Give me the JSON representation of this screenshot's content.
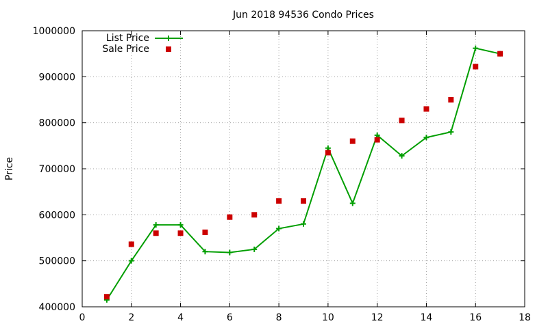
{
  "chart_data": {
    "type": "line",
    "title": "Jun 2018 94536 Condo Prices",
    "xlabel": "",
    "ylabel": "Price",
    "xlim": [
      0,
      18
    ],
    "ylim": [
      400000,
      1000000
    ],
    "xticks": [
      0,
      2,
      4,
      6,
      8,
      10,
      12,
      14,
      16,
      18
    ],
    "yticks": [
      400000,
      500000,
      600000,
      700000,
      800000,
      900000,
      1000000
    ],
    "grid": true,
    "legend_position": "top-left",
    "series": [
      {
        "name": "List Price",
        "style": "line-with-plus-markers",
        "color": "#009e00",
        "x": [
          1,
          2,
          3,
          4,
          5,
          6,
          7,
          8,
          9,
          10,
          11,
          12,
          13,
          14,
          15,
          16,
          17
        ],
        "y": [
          415000,
          500000,
          578000,
          578000,
          520000,
          518000,
          525000,
          570000,
          580000,
          745000,
          625000,
          773000,
          728000,
          768000,
          780000,
          962000,
          950000
        ]
      },
      {
        "name": "Sale Price",
        "style": "square-markers",
        "color": "#cc0000",
        "x": [
          1,
          2,
          3,
          4,
          5,
          6,
          7,
          8,
          9,
          10,
          11,
          12,
          13,
          14,
          15,
          16,
          17
        ],
        "y": [
          422000,
          536000,
          560000,
          560000,
          562000,
          595000,
          600000,
          630000,
          630000,
          735000,
          760000,
          763000,
          805000,
          830000,
          850000,
          922000,
          950000
        ]
      }
    ]
  }
}
